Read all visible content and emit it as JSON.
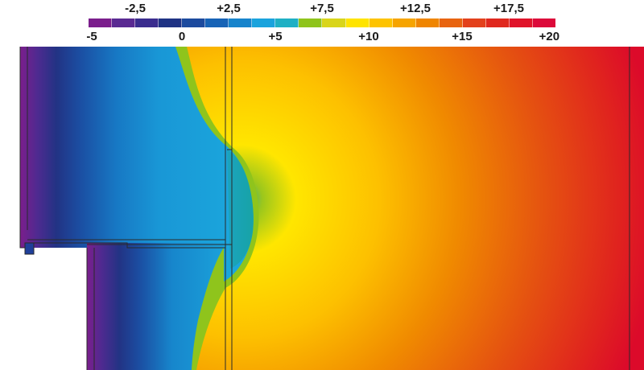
{
  "legend": {
    "top_ticks": [
      {
        "value": -2.5,
        "label": "-2,5"
      },
      {
        "value": 2.5,
        "label": "+2,5"
      },
      {
        "value": 7.5,
        "label": "+7,5"
      },
      {
        "value": 12.5,
        "label": "+12,5"
      },
      {
        "value": 17.5,
        "label": "+17,5"
      }
    ],
    "bottom_ticks": [
      {
        "value": -5,
        "label": "-5"
      },
      {
        "value": 0,
        "label": "0"
      },
      {
        "value": 5,
        "label": "+5"
      },
      {
        "value": 10,
        "label": "+10"
      },
      {
        "value": 15,
        "label": "+15"
      },
      {
        "value": 20,
        "label": "+20"
      }
    ],
    "min": -5,
    "max": 20,
    "colors": [
      "#7b1e8c",
      "#5a2a92",
      "#3b2d8f",
      "#1f3384",
      "#1c4a9e",
      "#1763b6",
      "#1784cc",
      "#1aa3dd",
      "#1fb0c4",
      "#8fc41c",
      "#d9d51a",
      "#ffe400",
      "#fdc300",
      "#f6a400",
      "#ef8500",
      "#e86410",
      "#e3411c",
      "#e0281e",
      "#e0142a",
      "#dc0a3a"
    ]
  },
  "diagram": {
    "background": "#ffffff",
    "line_color": "#2a2a2a"
  }
}
